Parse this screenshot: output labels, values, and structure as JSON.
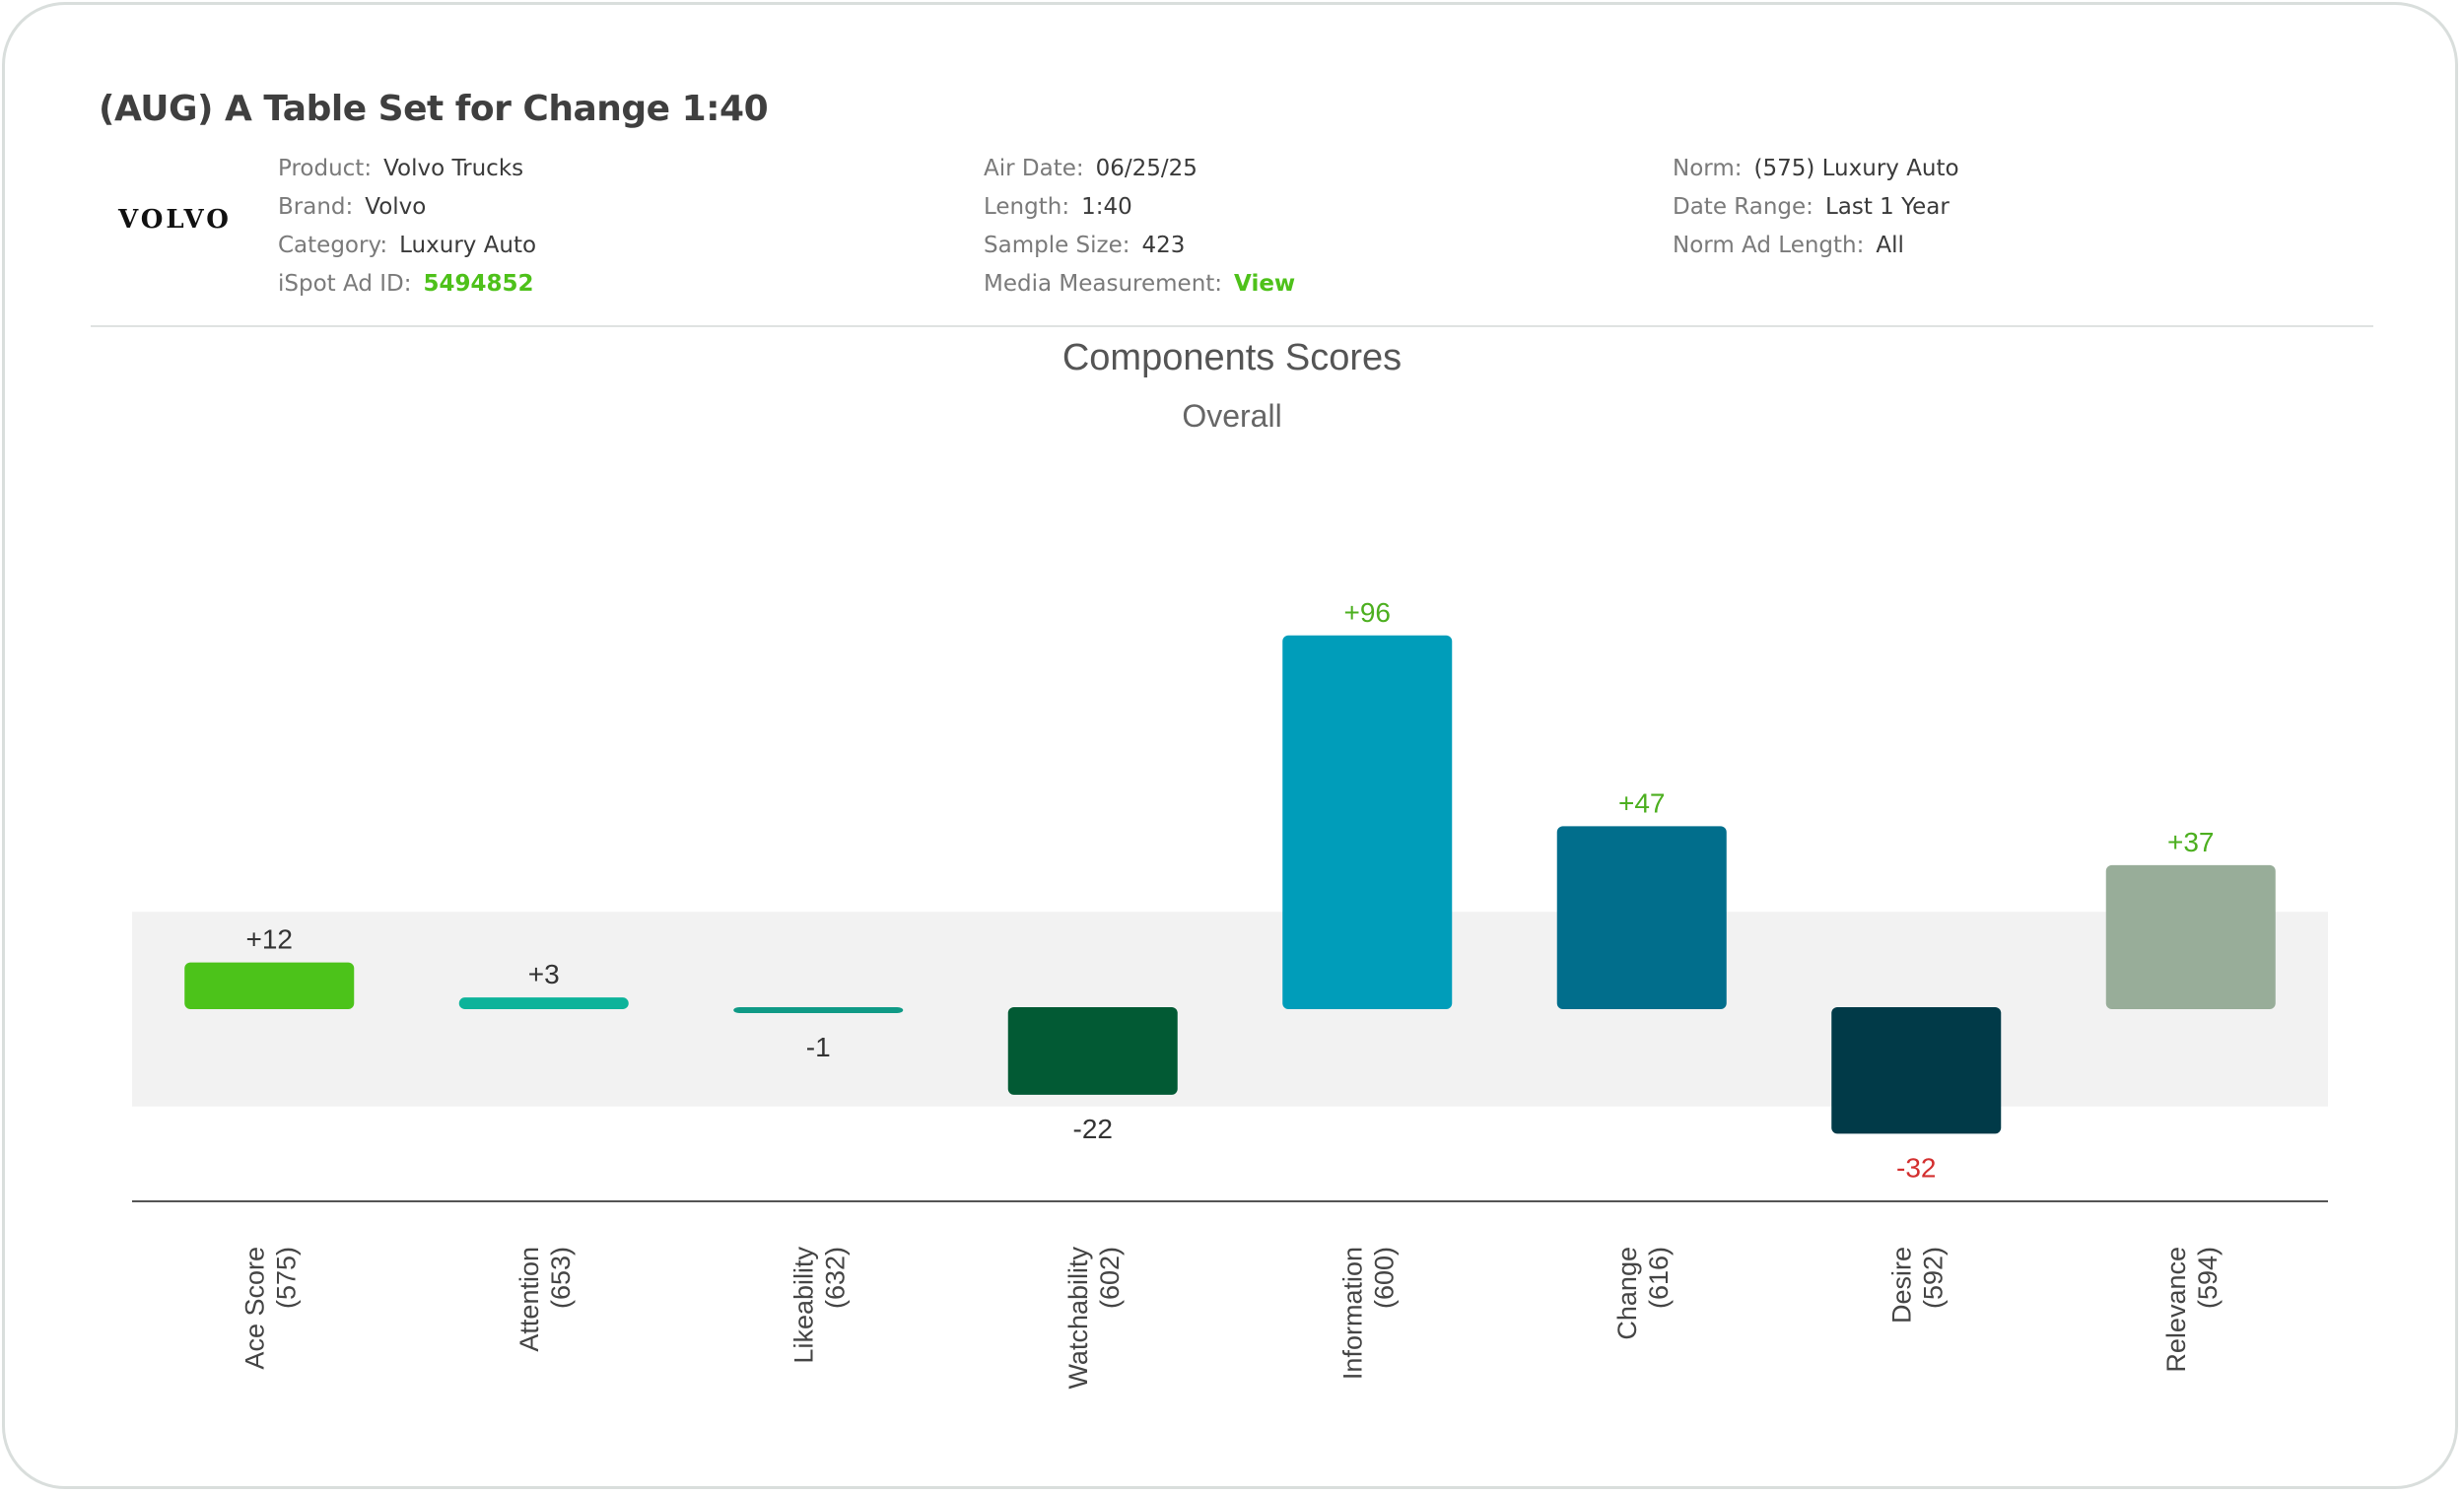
{
  "ad": {
    "title": "(AUG) A Table Set for Change 1:40",
    "logo_text": "VOLVO",
    "meta": [
      [
        {
          "label": "Product:",
          "value": "Volvo Trucks"
        },
        {
          "label": "Brand:",
          "value": "Volvo"
        },
        {
          "label": "Category:",
          "value": "Luxury Auto"
        },
        {
          "label": "iSpot Ad ID:",
          "value": "5494852",
          "link": true
        }
      ],
      [
        {
          "label": "Air Date:",
          "value": "06/25/25"
        },
        {
          "label": "Length:",
          "value": "1:40"
        },
        {
          "label": "Sample Size:",
          "value": "423"
        },
        {
          "label": "Media Measurement:",
          "value": "View",
          "link": true
        }
      ],
      [
        {
          "label": "Norm:",
          "value": "(575) Luxury Auto"
        },
        {
          "label": "Date Range:",
          "value": "Last 1 Year"
        },
        {
          "label": "Norm Ad Length:",
          "value": "All"
        }
      ]
    ]
  },
  "chart_data": {
    "type": "bar",
    "title": "Components Scores",
    "subtitle": "Overall",
    "categories": [
      "Ace Score",
      "Attention",
      "Likeability",
      "Watchability",
      "Information",
      "Change",
      "Desire",
      "Relevance"
    ],
    "category_counts": [
      "(575)",
      "(653)",
      "(632)",
      "(602)",
      "(600)",
      "(616)",
      "(592)",
      "(594)"
    ],
    "values": [
      12,
      3,
      -1,
      -22,
      96,
      47,
      -32,
      37
    ],
    "labels": [
      "+12",
      "+3",
      "-1",
      "-22",
      "+96",
      "+47",
      "-32",
      "+37"
    ],
    "bar_colors": [
      "#4cc31a",
      "#0db39a",
      "#0f9a86",
      "#025a34",
      "#009dba",
      "#016e8c",
      "#013a48",
      "#98ad99"
    ],
    "label_colors": [
      "#333333",
      "#333333",
      "#333333",
      "#333333",
      "#4caf1f",
      "#4caf1f",
      "#d32f2f",
      "#4caf1f"
    ],
    "neutral_band": [
      -25,
      25
    ],
    "band_color": "#f2f2f2",
    "axis_color": "#555555"
  }
}
